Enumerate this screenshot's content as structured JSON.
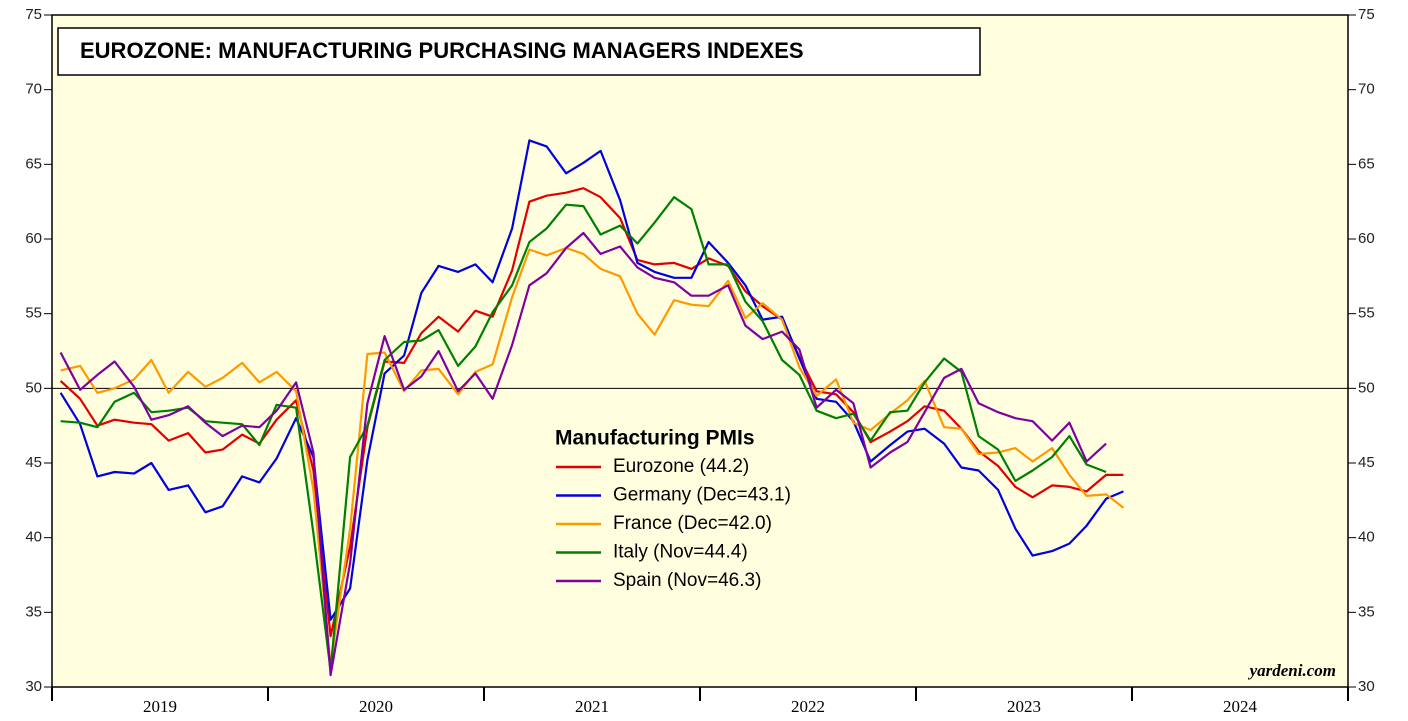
{
  "chart_data": {
    "type": "line",
    "title": "EUROZONE: MANUFACTURING PURCHASING MANAGERS INDEXES",
    "legend_title": "Manufacturing PMIs",
    "source": "yardeni.com",
    "x": [
      2019.04,
      2019.13,
      2019.21,
      2019.29,
      2019.38,
      2019.46,
      2019.54,
      2019.63,
      2019.71,
      2019.79,
      2019.88,
      2019.96,
      2020.04,
      2020.13,
      2020.21,
      2020.29,
      2020.38,
      2020.46,
      2020.54,
      2020.63,
      2020.71,
      2020.79,
      2020.88,
      2020.96,
      2021.04,
      2021.13,
      2021.21,
      2021.29,
      2021.38,
      2021.46,
      2021.54,
      2021.63,
      2021.71,
      2021.79,
      2021.88,
      2021.96,
      2022.04,
      2022.13,
      2022.21,
      2022.29,
      2022.38,
      2022.46,
      2022.54,
      2022.63,
      2022.71,
      2022.79,
      2022.88,
      2022.96,
      2023.04,
      2023.13,
      2023.21,
      2023.29,
      2023.38,
      2023.46,
      2023.54,
      2023.63,
      2023.71,
      2023.79,
      2023.88,
      2023.96
    ],
    "series": [
      {
        "name": "Eurozone (44.2)",
        "color": "#e00000",
        "values": [
          50.5,
          49.3,
          47.5,
          47.9,
          47.7,
          47.6,
          46.5,
          47.0,
          45.7,
          45.9,
          46.9,
          46.3,
          47.9,
          49.2,
          44.5,
          33.4,
          39.4,
          47.4,
          51.8,
          51.7,
          53.7,
          54.8,
          53.8,
          55.2,
          54.8,
          57.9,
          62.5,
          62.9,
          63.1,
          63.4,
          62.8,
          61.4,
          58.6,
          58.3,
          58.4,
          58.0,
          58.7,
          58.2,
          56.5,
          55.5,
          54.6,
          52.1,
          49.8,
          49.6,
          48.4,
          46.4,
          47.1,
          47.8,
          48.8,
          48.5,
          47.3,
          45.8,
          44.8,
          43.4,
          42.7,
          43.5,
          43.4,
          43.1,
          44.2,
          44.2
        ]
      },
      {
        "name": "Germany (Dec=43.1)",
        "color": "#0000e0",
        "values": [
          49.7,
          47.6,
          44.1,
          44.4,
          44.3,
          45.0,
          43.2,
          43.5,
          41.7,
          42.1,
          44.1,
          43.7,
          45.3,
          48.0,
          45.4,
          34.5,
          36.6,
          45.2,
          51.0,
          52.2,
          56.4,
          58.2,
          57.8,
          58.3,
          57.1,
          60.7,
          66.6,
          66.2,
          64.4,
          65.1,
          65.9,
          62.6,
          58.4,
          57.8,
          57.4,
          57.4,
          59.8,
          58.4,
          56.9,
          54.6,
          54.8,
          52.0,
          49.3,
          49.1,
          47.8,
          45.1,
          46.2,
          47.1,
          47.3,
          46.3,
          44.7,
          44.5,
          43.2,
          40.6,
          38.8,
          39.1,
          39.6,
          40.8,
          42.6,
          43.1
        ]
      },
      {
        "name": "France (Dec=42.0)",
        "color": "#ff9900",
        "values": [
          51.2,
          51.5,
          49.7,
          50.0,
          50.6,
          51.9,
          49.7,
          51.1,
          50.1,
          50.7,
          51.7,
          50.4,
          51.1,
          49.8,
          43.2,
          31.5,
          40.6,
          52.3,
          52.4,
          49.8,
          51.2,
          51.3,
          49.6,
          51.1,
          51.6,
          56.1,
          59.3,
          58.9,
          59.4,
          59.0,
          58.0,
          57.5,
          55.0,
          53.6,
          55.9,
          55.6,
          55.5,
          57.2,
          54.7,
          55.7,
          54.6,
          51.4,
          49.5,
          50.6,
          47.7,
          47.2,
          48.3,
          49.2,
          50.5,
          47.4,
          47.3,
          45.6,
          45.7,
          46.0,
          45.1,
          46.0,
          44.2,
          42.8,
          42.9,
          42.0
        ]
      },
      {
        "name": "Italy (Nov=44.4)",
        "color": "#008000",
        "values": [
          47.8,
          47.7,
          47.4,
          49.1,
          49.7,
          48.4,
          48.5,
          48.7,
          47.8,
          47.7,
          47.6,
          46.2,
          48.9,
          48.7,
          40.3,
          31.1,
          45.4,
          47.5,
          51.9,
          53.1,
          53.2,
          53.9,
          51.5,
          52.8,
          55.1,
          56.9,
          59.8,
          60.7,
          62.3,
          62.2,
          60.3,
          60.9,
          59.7,
          61.1,
          62.8,
          62.0,
          58.3,
          58.3,
          55.8,
          54.5,
          51.9,
          50.9,
          48.5,
          48.0,
          48.3,
          46.5,
          48.4,
          48.5,
          50.4,
          52.0,
          51.1,
          46.8,
          45.9,
          43.8,
          44.5,
          45.4,
          46.8,
          44.9,
          44.4,
          null
        ]
      },
      {
        "name": "Spain (Nov=46.3)",
        "color": "#8000a0",
        "values": [
          52.4,
          49.9,
          50.9,
          51.8,
          50.1,
          47.9,
          48.2,
          48.8,
          47.7,
          46.8,
          47.5,
          47.4,
          48.5,
          50.4,
          45.7,
          30.8,
          38.3,
          49.0,
          53.5,
          49.9,
          50.8,
          52.5,
          49.8,
          51.0,
          49.3,
          52.9,
          56.9,
          57.7,
          59.4,
          60.4,
          59.0,
          59.5,
          58.1,
          57.4,
          57.1,
          56.2,
          56.2,
          56.9,
          54.2,
          53.3,
          53.8,
          52.6,
          48.7,
          49.9,
          49.0,
          44.7,
          45.7,
          46.4,
          48.4,
          50.7,
          51.3,
          49.0,
          48.4,
          48.0,
          47.8,
          46.5,
          47.7,
          45.1,
          46.3,
          null
        ]
      }
    ],
    "xlim": [
      2019,
      2025
    ],
    "xticks": [
      2019,
      2020,
      2021,
      2022,
      2023,
      2024,
      2025
    ],
    "xtick_labels": [
      "2019",
      "2020",
      "2021",
      "2022",
      "2023",
      "2024"
    ],
    "ylim": [
      30,
      75
    ],
    "yticks": [
      30,
      35,
      40,
      45,
      50,
      55,
      60,
      65,
      70,
      75
    ],
    "hline": 50,
    "background": "#ffffe0"
  }
}
